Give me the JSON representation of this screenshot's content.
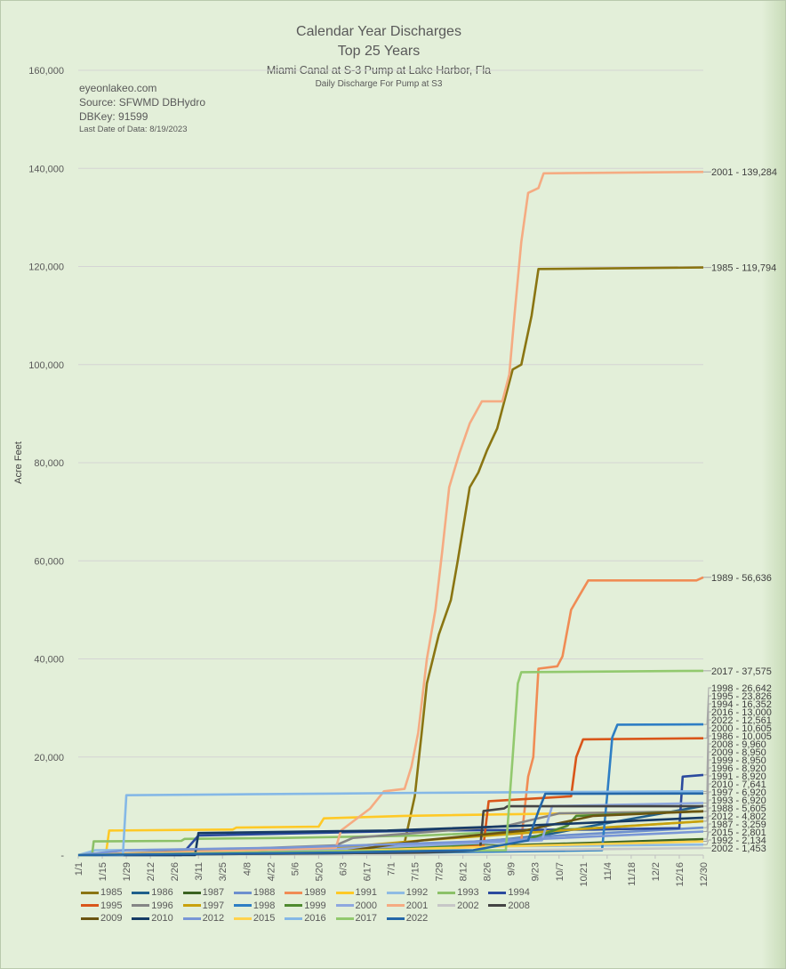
{
  "chart_data": {
    "type": "line",
    "title": "Calendar Year Discharges",
    "title2": "Top 25 Years",
    "subtitle": "Miami Canal at S-3 Pump at Lake Harbor, Fla",
    "subtitle2": "Daily Discharge For Pump at S3",
    "notes": [
      "eyeonlakeo.com",
      "Source: SFWMD DBHydro",
      "DBKey: 91599",
      "Last Date of Data: 8/19/2023"
    ],
    "xlabel": "",
    "ylabel": "Acre Feet",
    "ylim": [
      0,
      160000
    ],
    "yticks": [
      0,
      20000,
      40000,
      60000,
      80000,
      100000,
      120000,
      140000,
      160000
    ],
    "ytick_labels": [
      "-",
      "20,000",
      "40,000",
      "60,000",
      "80,000",
      "100,000",
      "120,000",
      "140,000",
      "160,000"
    ],
    "xlim_days": [
      0,
      364
    ],
    "xtick_labels": [
      "1/1",
      "1/15",
      "1/29",
      "2/12",
      "2/26",
      "3/11",
      "3/25",
      "4/8",
      "4/22",
      "5/6",
      "5/20",
      "6/3",
      "6/17",
      "7/1",
      "7/15",
      "7/29",
      "8/12",
      "8/26",
      "9/9",
      "9/23",
      "10/7",
      "10/21",
      "11/4",
      "11/18",
      "12/2",
      "12/16",
      "12/30"
    ],
    "grid": true,
    "legend_placement": "bottom",
    "series": [
      {
        "name": "1985",
        "color": "#8a7512",
        "label": "1985 - 119,794",
        "points": [
          [
            0,
            0
          ],
          [
            150,
            500
          ],
          [
            190,
            2500
          ],
          [
            196,
            12000
          ],
          [
            200,
            25000
          ],
          [
            203,
            35000
          ],
          [
            210,
            45000
          ],
          [
            217,
            52000
          ],
          [
            221,
            60000
          ],
          [
            228,
            75000
          ],
          [
            233,
            78000
          ],
          [
            238,
            82500
          ],
          [
            244,
            87000
          ],
          [
            250,
            95000
          ],
          [
            253,
            99000
          ],
          [
            258,
            100000
          ],
          [
            264,
            110000
          ],
          [
            268,
            119500
          ],
          [
            364,
            119794
          ]
        ]
      },
      {
        "name": "1986",
        "color": "#1f5f8b",
        "label": "1986 - 10,005",
        "points": [
          [
            0,
            0
          ],
          [
            100,
            500
          ],
          [
            200,
            1500
          ],
          [
            270,
            4000
          ],
          [
            300,
            6000
          ],
          [
            364,
            10005
          ]
        ]
      },
      {
        "name": "1987",
        "color": "#3b6321",
        "label": "1987 - 3,259",
        "points": [
          [
            0,
            0
          ],
          [
            140,
            500
          ],
          [
            200,
            1500
          ],
          [
            300,
            2500
          ],
          [
            364,
            3259
          ]
        ]
      },
      {
        "name": "1988",
        "color": "#6d8fce",
        "label": "1988 - 5,605",
        "points": [
          [
            0,
            0
          ],
          [
            120,
            800
          ],
          [
            200,
            2000
          ],
          [
            280,
            4000
          ],
          [
            364,
            5605
          ]
        ]
      },
      {
        "name": "1989",
        "color": "#f08c55",
        "label": "1989 - 56,636",
        "points": [
          [
            0,
            0
          ],
          [
            150,
            1000
          ],
          [
            220,
            2000
          ],
          [
            258,
            3000
          ],
          [
            262,
            16000
          ],
          [
            265,
            20000
          ],
          [
            268,
            38000
          ],
          [
            279,
            38500
          ],
          [
            282,
            40500
          ],
          [
            287,
            50000
          ],
          [
            292,
            53000
          ],
          [
            297,
            56000
          ],
          [
            360,
            56000
          ],
          [
            364,
            56636
          ]
        ]
      },
      {
        "name": "1991",
        "color": "#ffc926",
        "label": "1991 - 8,920",
        "points": [
          [
            0,
            0
          ],
          [
            16,
            0
          ],
          [
            18,
            5000
          ],
          [
            90,
            5200
          ],
          [
            92,
            5600
          ],
          [
            140,
            5800
          ],
          [
            143,
            7500
          ],
          [
            190,
            8000
          ],
          [
            364,
            8920
          ]
        ]
      },
      {
        "name": "1992",
        "color": "#8fbbe3",
        "label": "1992 - 2,134",
        "points": [
          [
            0,
            0
          ],
          [
            10,
            1000
          ],
          [
            100,
            1200
          ],
          [
            250,
            1800
          ],
          [
            364,
            2134
          ]
        ]
      },
      {
        "name": "1993",
        "color": "#8cc168",
        "label": "1993 - 6,920",
        "points": [
          [
            0,
            0
          ],
          [
            8,
            0
          ],
          [
            9,
            2800
          ],
          [
            60,
            2900
          ],
          [
            62,
            3300
          ],
          [
            120,
            3500
          ],
          [
            200,
            4000
          ],
          [
            300,
            5500
          ],
          [
            364,
            6920
          ]
        ]
      },
      {
        "name": "1994",
        "color": "#2b4a9e",
        "label": "1994 - 16,352",
        "points": [
          [
            0,
            0
          ],
          [
            60,
            0
          ],
          [
            70,
            4000
          ],
          [
            200,
            5000
          ],
          [
            300,
            5200
          ],
          [
            350,
            5500
          ],
          [
            352,
            16000
          ],
          [
            364,
            16352
          ]
        ]
      },
      {
        "name": "1995",
        "color": "#d9561a",
        "label": "1995 - 23,826",
        "points": [
          [
            0,
            0
          ],
          [
            150,
            1000
          ],
          [
            236,
            2000
          ],
          [
            239,
            11000
          ],
          [
            287,
            12000
          ],
          [
            290,
            20000
          ],
          [
            294,
            23600
          ],
          [
            364,
            23826
          ]
        ]
      },
      {
        "name": "1996",
        "color": "#858585",
        "label": "1996 - 8,920",
        "points": [
          [
            0,
            0
          ],
          [
            150,
            2000
          ],
          [
            160,
            3500
          ],
          [
            250,
            6000
          ],
          [
            280,
            8500
          ],
          [
            364,
            8920
          ]
        ]
      },
      {
        "name": "1997",
        "color": "#c9a10d",
        "label": "1997 - 6,920",
        "points": [
          [
            0,
            0
          ],
          [
            150,
            1500
          ],
          [
            200,
            3000
          ],
          [
            280,
            5000
          ],
          [
            364,
            6920
          ]
        ]
      },
      {
        "name": "1998",
        "color": "#2e7ec4",
        "label": "1998 - 26,642",
        "points": [
          [
            0,
            0
          ],
          [
            200,
            500
          ],
          [
            305,
            1000
          ],
          [
            308,
            12000
          ],
          [
            311,
            24000
          ],
          [
            314,
            26600
          ],
          [
            364,
            26642
          ]
        ]
      },
      {
        "name": "1999",
        "color": "#4f8a2f",
        "label": "1999 - 8,950",
        "points": [
          [
            0,
            0
          ],
          [
            200,
            1500
          ],
          [
            260,
            3000
          ],
          [
            285,
            6000
          ],
          [
            290,
            8000
          ],
          [
            364,
            8950
          ]
        ]
      },
      {
        "name": "2000",
        "color": "#8ea8df",
        "label": "2000 - 10,605",
        "points": [
          [
            0,
            0
          ],
          [
            100,
            500
          ],
          [
            270,
            3000
          ],
          [
            276,
            10000
          ],
          [
            364,
            10605
          ]
        ]
      },
      {
        "name": "2001",
        "color": "#f5ab82",
        "label": "2001 - 139,284",
        "points": [
          [
            0,
            0
          ],
          [
            150,
            1500
          ],
          [
            153,
            5000
          ],
          [
            170,
            9500
          ],
          [
            178,
            13000
          ],
          [
            190,
            13500
          ],
          [
            194,
            18000
          ],
          [
            198,
            25000
          ],
          [
            203,
            40000
          ],
          [
            208,
            50000
          ],
          [
            212,
            62000
          ],
          [
            216,
            75000
          ],
          [
            222,
            82000
          ],
          [
            228,
            88000
          ],
          [
            235,
            92500
          ],
          [
            247,
            92500
          ],
          [
            251,
            98000
          ],
          [
            254,
            110000
          ],
          [
            258,
            125000
          ],
          [
            262,
            135000
          ],
          [
            268,
            136000
          ],
          [
            271,
            139000
          ],
          [
            364,
            139284
          ]
        ]
      },
      {
        "name": "2002",
        "color": "#c7c7c7",
        "label": "2002 - 1,453",
        "points": [
          [
            0,
            0
          ],
          [
            100,
            300
          ],
          [
            250,
            1000
          ],
          [
            364,
            1453
          ]
        ]
      },
      {
        "name": "2008",
        "color": "#444444",
        "label": "2008 - 9,960",
        "points": [
          [
            0,
            0
          ],
          [
            200,
            500
          ],
          [
            234,
            1000
          ],
          [
            236,
            9000
          ],
          [
            248,
            9500
          ],
          [
            250,
            9960
          ],
          [
            364,
            9960
          ]
        ]
      },
      {
        "name": "2009",
        "color": "#6b5511",
        "label": "2009 - 8,950",
        "points": [
          [
            0,
            0
          ],
          [
            150,
            500
          ],
          [
            200,
            3000
          ],
          [
            260,
            5000
          ],
          [
            300,
            8000
          ],
          [
            364,
            8950
          ]
        ]
      },
      {
        "name": "2010",
        "color": "#163b66",
        "label": "2010 - 7,641",
        "points": [
          [
            0,
            0
          ],
          [
            68,
            0
          ],
          [
            70,
            4500
          ],
          [
            180,
            5000
          ],
          [
            260,
            6000
          ],
          [
            364,
            7641
          ]
        ]
      },
      {
        "name": "2012",
        "color": "#7996d6",
        "label": "2012 - 4,802",
        "points": [
          [
            0,
            0
          ],
          [
            28,
            1000
          ],
          [
            120,
            1500
          ],
          [
            250,
            3000
          ],
          [
            364,
            4802
          ]
        ]
      },
      {
        "name": "2015",
        "color": "#ffd24d",
        "label": "2015 - 2,801",
        "points": [
          [
            0,
            0
          ],
          [
            150,
            800
          ],
          [
            250,
            1800
          ],
          [
            364,
            2801
          ]
        ]
      },
      {
        "name": "2016",
        "color": "#85b8e6",
        "label": "2016 - 13,000",
        "points": [
          [
            0,
            0
          ],
          [
            26,
            0
          ],
          [
            28,
            12200
          ],
          [
            100,
            12400
          ],
          [
            200,
            12700
          ],
          [
            300,
            12900
          ],
          [
            364,
            13000
          ]
        ]
      },
      {
        "name": "2017",
        "color": "#92c96e",
        "label": "2017 - 37,575",
        "points": [
          [
            0,
            0
          ],
          [
            150,
            800
          ],
          [
            249,
            1000
          ],
          [
            253,
            20000
          ],
          [
            256,
            35000
          ],
          [
            258,
            37300
          ],
          [
            364,
            37575
          ]
        ]
      },
      {
        "name": "2022",
        "color": "#2467a8",
        "label": "2022 - 12,561",
        "points": [
          [
            0,
            0
          ],
          [
            150,
            500
          ],
          [
            230,
            1000
          ],
          [
            262,
            3000
          ],
          [
            268,
            9000
          ],
          [
            272,
            12500
          ],
          [
            364,
            12561
          ]
        ]
      }
    ]
  }
}
